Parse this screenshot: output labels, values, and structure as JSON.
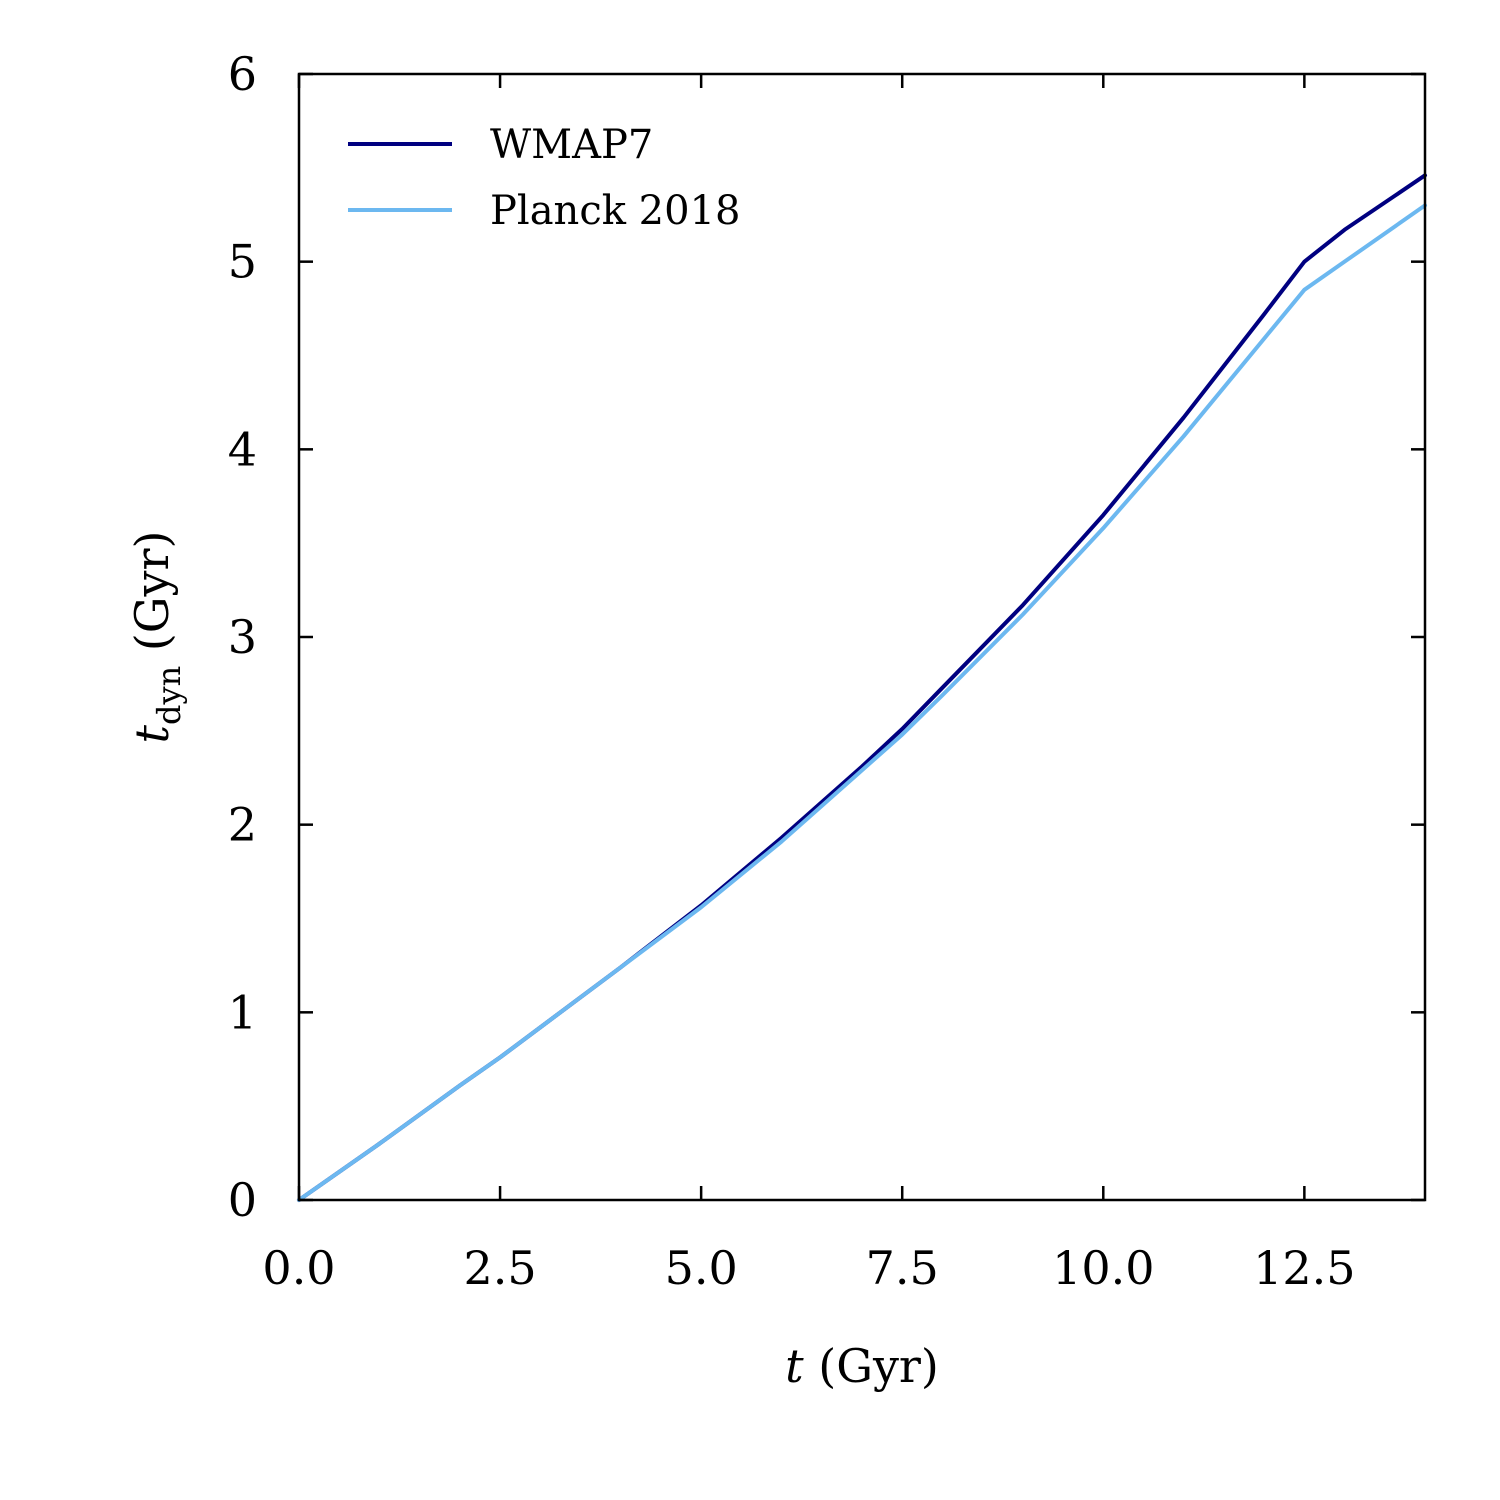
{
  "chart_data": {
    "type": "line",
    "title": "",
    "xlabel": {
      "var": "t",
      "unit": " (Gyr)"
    },
    "ylabel": {
      "var": "t",
      "sub": "dyn",
      "unit": " (Gyr)"
    },
    "xlim": [
      0,
      14
    ],
    "ylim": [
      0,
      6
    ],
    "x_ticks": [
      0,
      2.5,
      5,
      7.5,
      10,
      12.5
    ],
    "x_tick_labels": [
      "0.0",
      "2.5",
      "5.0",
      "7.5",
      "10.0",
      "12.5"
    ],
    "y_ticks": [
      0,
      1,
      2,
      3,
      4,
      5,
      6
    ],
    "y_tick_labels": [
      "0",
      "1",
      "2",
      "3",
      "4",
      "5",
      "6"
    ],
    "grid": false,
    "legend_position": "top-left",
    "series": [
      {
        "name": "WMAP7",
        "color": "#000080",
        "x": [
          0,
          1,
          2,
          2.5,
          3,
          4,
          5,
          6,
          7,
          7.5,
          8,
          9,
          10,
          11,
          12,
          12.5,
          13,
          14
        ],
        "y": [
          0,
          0.3,
          0.61,
          0.76,
          0.92,
          1.24,
          1.57,
          1.93,
          2.31,
          2.51,
          2.73,
          3.17,
          3.65,
          4.17,
          4.72,
          5.0,
          5.17,
          5.46
        ]
      },
      {
        "name": "Planck 2018",
        "color": "#6CB8F0",
        "x": [
          0,
          1,
          2,
          2.5,
          3,
          4,
          5,
          6,
          7,
          7.5,
          8,
          9,
          10,
          11,
          12,
          12.5,
          13,
          14
        ],
        "y": [
          0,
          0.3,
          0.61,
          0.76,
          0.92,
          1.24,
          1.56,
          1.91,
          2.29,
          2.48,
          2.69,
          3.12,
          3.58,
          4.07,
          4.59,
          4.85,
          5.0,
          5.3
        ]
      }
    ]
  }
}
